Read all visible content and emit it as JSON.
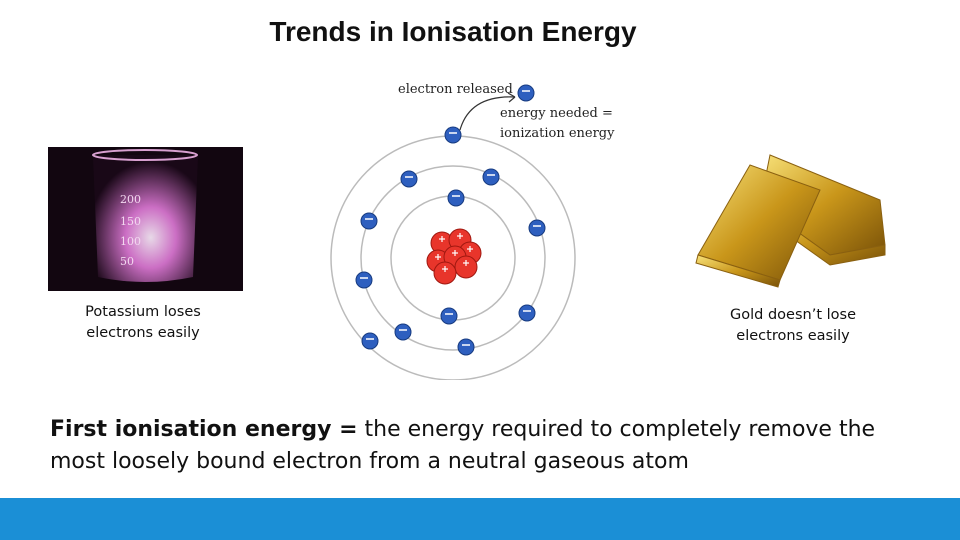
{
  "title": "Trends in Ionisation Energy",
  "left_image": {
    "scale": [
      "200",
      "150",
      "100",
      "50"
    ],
    "caption": "Potassium loses electrons easily"
  },
  "diagram": {
    "released_label": "electron released",
    "energy_label": [
      "energy needed =",
      "ionization energy"
    ]
  },
  "right_image": {
    "caption": "Gold doesn’t lose electrons easily"
  },
  "definition": {
    "term": "First ionisation energy =",
    "text": "the energy required to completely remove the most loosely bound electron from a neutral gaseous atom"
  }
}
